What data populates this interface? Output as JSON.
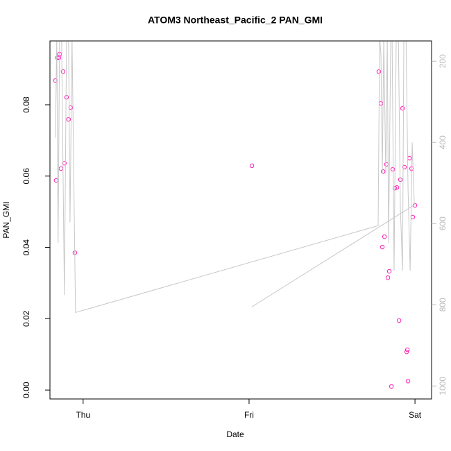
{
  "chart_data": {
    "type": "scatter",
    "title": "ATOM3 Northeast_Pacific_2 PAN_GMI",
    "xlabel": "Date",
    "ylabel": "PAN_GMI",
    "xlim": [
      -0.2,
      2.1
    ],
    "xticks": [
      {
        "value": 0,
        "label": "Thu"
      },
      {
        "value": 1,
        "label": "Fri"
      },
      {
        "value": 2,
        "label": "Sat"
      }
    ],
    "ylim": [
      -0.0025,
      0.0979
    ],
    "yticks": [
      {
        "value": 0,
        "label": "0.00"
      },
      {
        "value": 0.02,
        "label": "0.02"
      },
      {
        "value": 0.04,
        "label": "0.04"
      },
      {
        "value": 0.06,
        "label": "0.06"
      },
      {
        "value": 0.08,
        "label": "0.08"
      }
    ],
    "y2lim": [
      1032,
      150
    ],
    "y2ticks": [
      200,
      400,
      600,
      800,
      1000
    ],
    "y2color": "#bbbbbb",
    "series": [
      {
        "color": "#ff1fb4",
        "x": [
          -0.167,
          -0.163,
          -0.155,
          -0.146,
          -0.142,
          -0.134,
          -0.121,
          -0.113,
          -0.1,
          -0.088,
          -0.075,
          -0.05,
          1.017,
          1.782,
          1.795,
          1.803,
          1.808,
          1.816,
          1.828,
          1.837,
          1.845,
          1.858,
          1.866,
          1.879,
          1.891,
          1.904,
          1.912,
          1.925,
          1.937,
          1.95,
          1.954,
          1.958,
          1.967,
          1.979,
          1.987,
          2.0
        ],
        "values": [
          0.0868,
          0.0588,
          0.0932,
          0.0932,
          0.0942,
          0.0621,
          0.0893,
          0.0636,
          0.0821,
          0.0759,
          0.0792,
          0.0385,
          0.0629,
          0.0893,
          0.0804,
          0.0401,
          0.0613,
          0.043,
          0.0633,
          0.0315,
          0.0333,
          0.001,
          0.0619,
          0.0566,
          0.0568,
          0.0195,
          0.059,
          0.079,
          0.0625,
          0.0107,
          0.0113,
          0.0025,
          0.065,
          0.0621,
          0.0485,
          0.0518
        ]
      },
      {
        "color": "#c8c8c8",
        "axis": "y2",
        "x": [
          -0.167,
          -0.159,
          -0.151,
          -0.142,
          -0.13,
          -0.113,
          -0.1,
          -0.088,
          -0.079,
          -0.067,
          -0.046,
          1.778,
          1.787,
          1.795,
          1.803,
          1.812,
          1.824,
          1.833,
          1.841,
          1.854,
          1.862,
          1.874,
          1.887,
          1.9,
          1.912,
          1.925,
          1.933,
          1.946,
          1.958,
          1.971,
          1.983,
          1.996,
          1.017
        ],
        "values": [
          388,
          140,
          648,
          140,
          140,
          776,
          140,
          140,
          597,
          140,
          819,
          605,
          140,
          186,
          477,
          140,
          477,
          140,
          648,
          140,
          140,
          716,
          140,
          140,
          562,
          716,
          140,
          140,
          511,
          716,
          400,
          554,
          805
        ]
      }
    ]
  }
}
